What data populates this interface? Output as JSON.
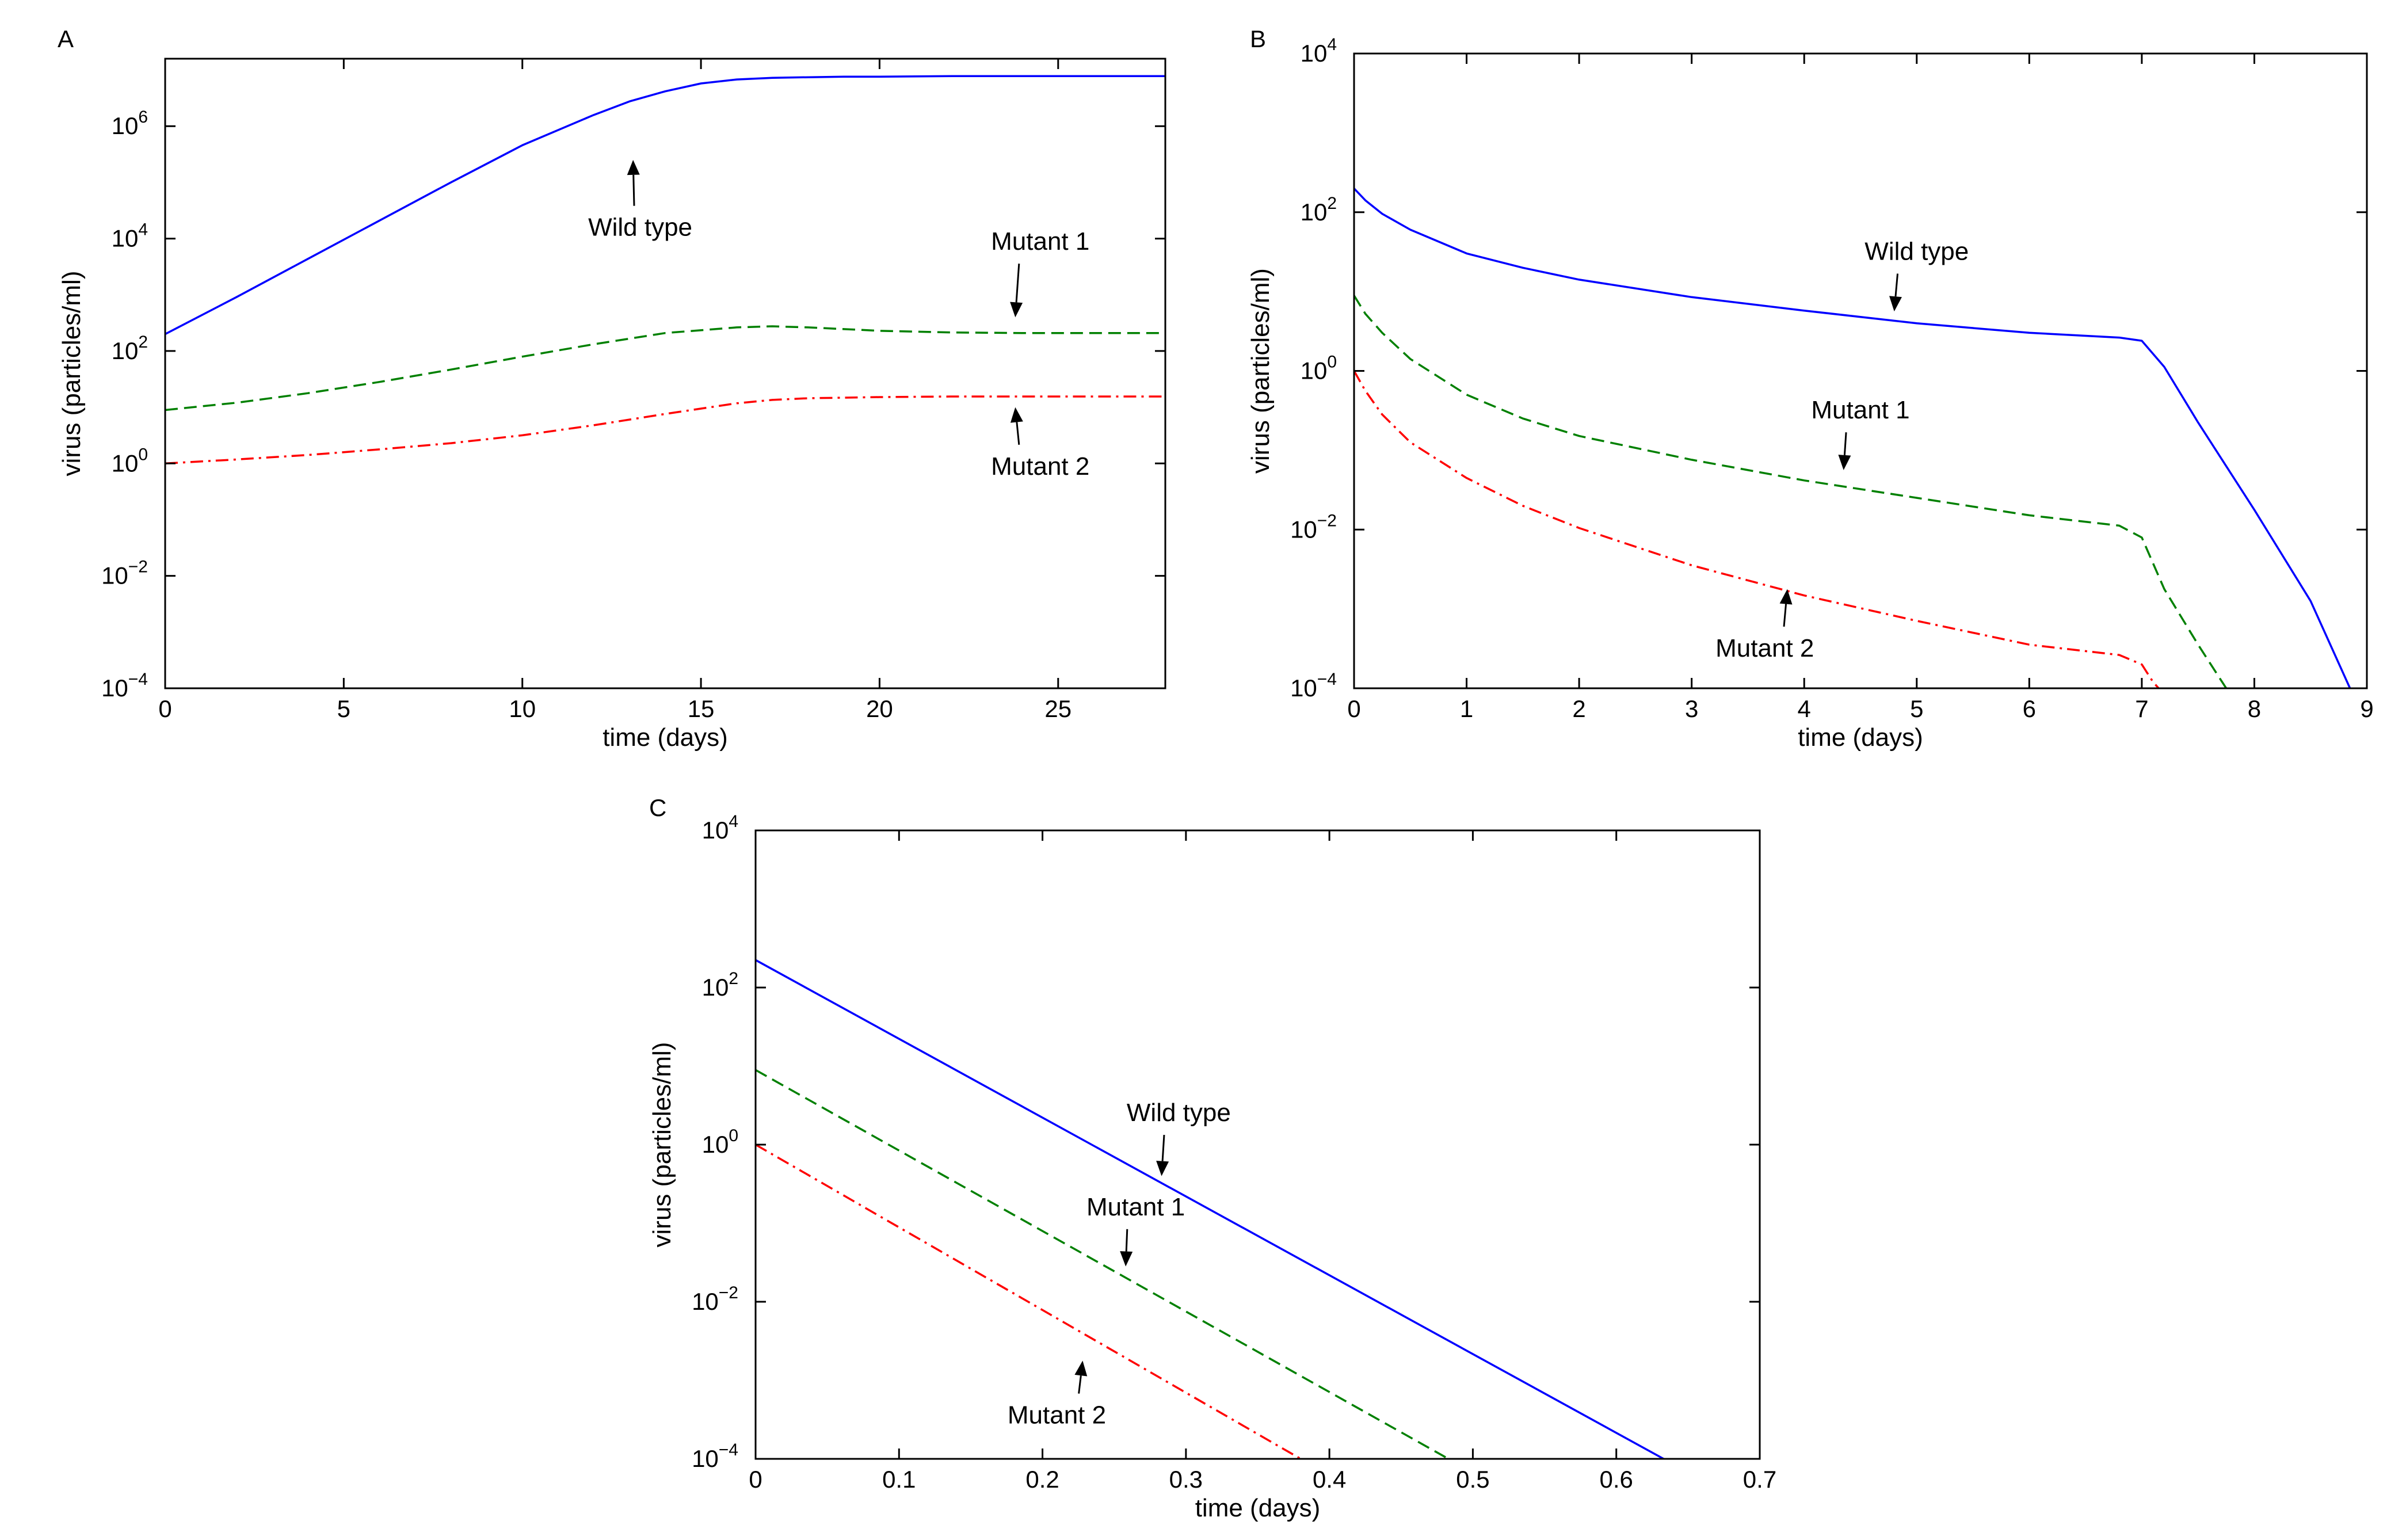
{
  "chart_data": [
    {
      "type": "line",
      "panel": "A",
      "xlabel": "time (days)",
      "ylabel": "virus (particles/ml)",
      "y_scale": "log",
      "xlim": [
        0,
        28
      ],
      "ylim_log10": [
        -4,
        7.2
      ],
      "x_ticks": [
        0,
        5,
        10,
        15,
        20,
        25
      ],
      "y_ticks_log10": [
        -4,
        -2,
        0,
        2,
        4,
        6
      ],
      "series": [
        {
          "name": "Wild type",
          "color": "#0000ff",
          "dash": "solid",
          "x": [
            0,
            2,
            4,
            6,
            8,
            10,
            12,
            13,
            14,
            15,
            16,
            17,
            18,
            19,
            20,
            22,
            24,
            26,
            28
          ],
          "log10_y": [
            2.3,
            2.96,
            3.64,
            4.32,
            5.0,
            5.66,
            6.2,
            6.44,
            6.62,
            6.76,
            6.83,
            6.86,
            6.87,
            6.88,
            6.88,
            6.89,
            6.89,
            6.89,
            6.89
          ]
        },
        {
          "name": "Mutant 1",
          "color": "#008000",
          "dash": "dashed",
          "x": [
            0,
            2,
            4,
            6,
            8,
            10,
            12,
            14,
            16,
            17,
            18,
            20,
            22,
            24,
            26,
            28
          ],
          "log10_y": [
            0.95,
            1.08,
            1.25,
            1.45,
            1.67,
            1.9,
            2.12,
            2.32,
            2.42,
            2.44,
            2.42,
            2.36,
            2.33,
            2.32,
            2.32,
            2.32
          ]
        },
        {
          "name": "Mutant 2",
          "color": "#ff0000",
          "dash": "dashdot",
          "x": [
            0,
            2,
            4,
            6,
            8,
            10,
            12,
            14,
            16,
            17,
            18,
            20,
            22,
            24,
            26,
            28
          ],
          "log10_y": [
            0.0,
            0.07,
            0.15,
            0.25,
            0.36,
            0.5,
            0.68,
            0.88,
            1.07,
            1.13,
            1.16,
            1.18,
            1.19,
            1.19,
            1.19,
            1.19
          ]
        }
      ],
      "annotations": [
        {
          "text": "Wild type",
          "x": 13.3,
          "log10_y": 4.05,
          "tip_x": 13.1,
          "tip_log10_y": 5.4
        },
        {
          "text": "Mutant 1",
          "x": 24.5,
          "log10_y": 3.8,
          "tip_x": 23.8,
          "tip_log10_y": 2.6
        },
        {
          "text": "Mutant 2",
          "x": 24.5,
          "log10_y": -0.2,
          "tip_x": 23.8,
          "tip_log10_y": 1.0
        }
      ]
    },
    {
      "type": "line",
      "panel": "B",
      "xlabel": "time (days)",
      "ylabel": "virus (particles/ml)",
      "y_scale": "log",
      "xlim": [
        0,
        9
      ],
      "ylim_log10": [
        -4,
        4
      ],
      "x_ticks": [
        0,
        1,
        2,
        3,
        4,
        5,
        6,
        7,
        8,
        9
      ],
      "y_ticks_log10": [
        -4,
        -2,
        0,
        2,
        4
      ],
      "series": [
        {
          "name": "Wild type",
          "color": "#0000ff",
          "dash": "solid",
          "x": [
            0,
            0.1,
            0.25,
            0.5,
            1,
            1.5,
            2,
            3,
            4,
            5,
            6,
            6.8,
            7.0,
            7.2,
            7.5,
            8,
            8.5,
            8.85
          ],
          "log10_y": [
            2.3,
            2.15,
            1.98,
            1.78,
            1.48,
            1.3,
            1.15,
            0.93,
            0.76,
            0.6,
            0.48,
            0.42,
            0.38,
            0.05,
            -0.65,
            -1.75,
            -2.9,
            -4.0
          ]
        },
        {
          "name": "Mutant 1",
          "color": "#008000",
          "dash": "dashed",
          "x": [
            0,
            0.1,
            0.25,
            0.5,
            1,
            1.5,
            2,
            3,
            4,
            5,
            6,
            6.8,
            7.0,
            7.2,
            7.5,
            7.75
          ],
          "log10_y": [
            0.95,
            0.72,
            0.48,
            0.15,
            -0.3,
            -0.6,
            -0.82,
            -1.12,
            -1.38,
            -1.6,
            -1.82,
            -1.95,
            -2.1,
            -2.75,
            -3.45,
            -4.0
          ]
        },
        {
          "name": "Mutant 2",
          "color": "#ff0000",
          "dash": "dashdot",
          "x": [
            0,
            0.1,
            0.25,
            0.5,
            1,
            1.5,
            2,
            3,
            4,
            5,
            6,
            6.8,
            7.0,
            7.1,
            7.15
          ],
          "log10_y": [
            0.0,
            -0.25,
            -0.55,
            -0.9,
            -1.35,
            -1.7,
            -1.98,
            -2.45,
            -2.83,
            -3.15,
            -3.45,
            -3.58,
            -3.7,
            -3.92,
            -4.0
          ]
        }
      ],
      "annotations": [
        {
          "text": "Wild type",
          "x": 5.0,
          "log10_y": 1.4,
          "tip_x": 4.8,
          "tip_log10_y": 0.75
        },
        {
          "text": "Mutant 1",
          "x": 4.5,
          "log10_y": -0.6,
          "tip_x": 4.35,
          "tip_log10_y": -1.25
        },
        {
          "text": "Mutant 2",
          "x": 3.65,
          "log10_y": -3.6,
          "tip_x": 3.85,
          "tip_log10_y": -2.75
        }
      ]
    },
    {
      "type": "line",
      "panel": "C",
      "xlabel": "time (days)",
      "ylabel": "virus (particles/ml)",
      "y_scale": "log",
      "xlim": [
        0,
        0.7
      ],
      "ylim_log10": [
        -4,
        4
      ],
      "x_ticks": [
        0,
        0.1,
        0.2,
        0.3,
        0.4,
        0.5,
        0.6,
        0.7
      ],
      "y_ticks_log10": [
        -4,
        -2,
        0,
        2,
        4
      ],
      "series": [
        {
          "name": "Wild type",
          "color": "#0000ff",
          "dash": "solid",
          "x": [
            0,
            0.633
          ],
          "log10_y": [
            2.35,
            -4.0
          ]
        },
        {
          "name": "Mutant 1",
          "color": "#008000",
          "dash": "dashed",
          "x": [
            0,
            0.483
          ],
          "log10_y": [
            0.95,
            -4.0
          ]
        },
        {
          "name": "Mutant 2",
          "color": "#ff0000",
          "dash": "dashdot",
          "x": [
            0,
            0.38
          ],
          "log10_y": [
            0.0,
            -4.0
          ]
        }
      ],
      "annotations": [
        {
          "text": "Wild type",
          "x": 0.295,
          "log10_y": 0.3,
          "tip_x": 0.283,
          "tip_log10_y": -0.4
        },
        {
          "text": "Mutant 1",
          "x": 0.265,
          "log10_y": -0.9,
          "tip_x": 0.258,
          "tip_log10_y": -1.55
        },
        {
          "text": "Mutant 2",
          "x": 0.21,
          "log10_y": -3.55,
          "tip_x": 0.228,
          "tip_log10_y": -2.75
        }
      ]
    }
  ]
}
